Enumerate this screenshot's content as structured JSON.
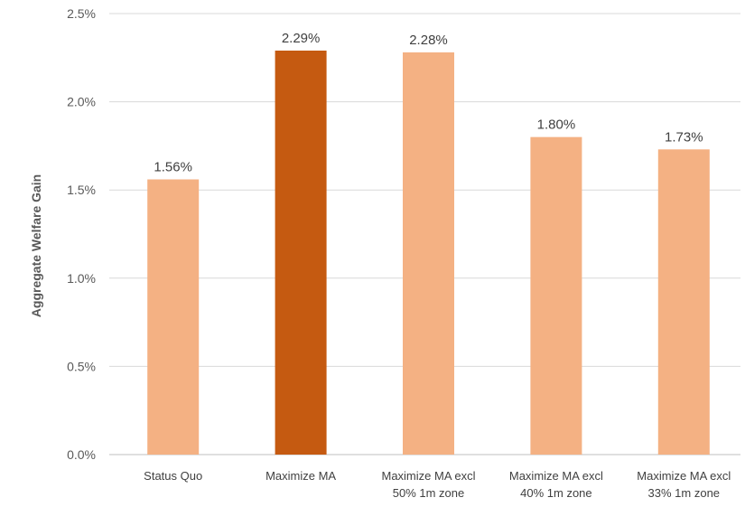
{
  "chart_data": {
    "type": "bar",
    "title": "",
    "xlabel": "",
    "ylabel": "Aggregate Welfare Gain",
    "ylim": [
      0,
      2.5
    ],
    "yticks": [
      "0.0%",
      "0.5%",
      "1.0%",
      "1.5%",
      "2.0%",
      "2.5%"
    ],
    "ytick_values": [
      0,
      0.5,
      1.0,
      1.5,
      2.0,
      2.5
    ],
    "grid": true,
    "categories": [
      [
        "Status Quo"
      ],
      [
        "Maximize MA"
      ],
      [
        "Maximize MA excl",
        "50% 1m zone"
      ],
      [
        "Maximize MA excl",
        "40% 1m zone"
      ],
      [
        "Maximize MA excl",
        "33% 1m zone"
      ]
    ],
    "values": [
      1.56,
      2.29,
      2.28,
      1.8,
      1.73
    ],
    "data_labels": [
      "1.56%",
      "2.29%",
      "2.28%",
      "1.80%",
      "1.73%"
    ],
    "colors": [
      "#f4b183",
      "#c55a11",
      "#f4b183",
      "#f4b183",
      "#f4b183"
    ]
  }
}
